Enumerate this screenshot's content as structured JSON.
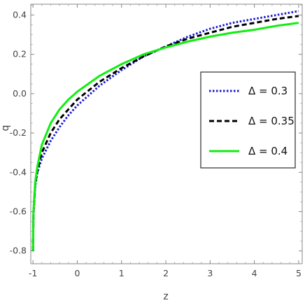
{
  "chart_data": {
    "type": "line",
    "xlabel": "z",
    "ylabel": "q",
    "xlim": [
      -1.05,
      5.08
    ],
    "ylim": [
      -0.865,
      0.455
    ],
    "xticks": [
      -1,
      0,
      1,
      2,
      3,
      4,
      5
    ],
    "yticks": [
      -0.8,
      -0.6,
      -0.4,
      -0.2,
      0.0,
      0.2,
      0.4
    ],
    "ytick_labels": [
      "-0.8",
      "-0.6",
      "-0.4",
      "-0.2",
      "0.0",
      "0.2",
      "0.4"
    ],
    "xtick_labels": [
      "-1",
      "0",
      "1",
      "2",
      "3",
      "4",
      "5"
    ],
    "legend_position": "right",
    "series": [
      {
        "name": "Δ = 0.3",
        "color": "#1a1ad6",
        "style": "dotted",
        "x": [
          -0.999,
          -0.99,
          -0.95,
          -0.9,
          -0.8,
          -0.6,
          -0.4,
          -0.2,
          0.0,
          0.5,
          1.0,
          1.5,
          2.0,
          2.5,
          3.0,
          3.5,
          4.0,
          4.5,
          5.0
        ],
        "y": [
          -0.8,
          -0.62,
          -0.47,
          -0.4,
          -0.33,
          -0.24,
          -0.17,
          -0.11,
          -0.06,
          0.04,
          0.12,
          0.19,
          0.24,
          0.29,
          0.33,
          0.36,
          0.38,
          0.4,
          0.42
        ]
      },
      {
        "name": "Δ = 0.35",
        "color": "#000000",
        "style": "dashed",
        "x": [
          -0.999,
          -0.99,
          -0.95,
          -0.9,
          -0.8,
          -0.6,
          -0.4,
          -0.2,
          0.0,
          0.5,
          1.0,
          1.5,
          2.0,
          2.5,
          3.0,
          3.5,
          4.0,
          4.5,
          5.0
        ],
        "y": [
          -0.8,
          -0.61,
          -0.46,
          -0.39,
          -0.3,
          -0.2,
          -0.13,
          -0.08,
          -0.03,
          0.06,
          0.13,
          0.19,
          0.24,
          0.28,
          0.31,
          0.34,
          0.36,
          0.38,
          0.395
        ]
      },
      {
        "name": "Δ = 0.4",
        "color": "#11ee11",
        "style": "solid",
        "x": [
          -0.999,
          -0.99,
          -0.95,
          -0.9,
          -0.8,
          -0.6,
          -0.4,
          -0.2,
          0.0,
          0.5,
          1.0,
          1.5,
          2.0,
          2.5,
          3.0,
          3.5,
          4.0,
          4.5,
          5.0
        ],
        "y": [
          -0.8,
          -0.6,
          -0.45,
          -0.37,
          -0.26,
          -0.15,
          -0.08,
          -0.03,
          0.01,
          0.09,
          0.15,
          0.2,
          0.235,
          0.265,
          0.29,
          0.31,
          0.325,
          0.345,
          0.36
        ]
      }
    ]
  }
}
